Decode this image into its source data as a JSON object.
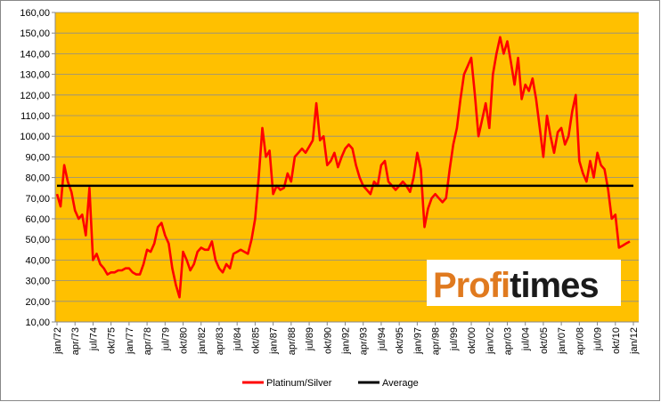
{
  "chart_data": {
    "type": "line",
    "categories": [
      "jan/72",
      null,
      null,
      null,
      null,
      "apr/73",
      null,
      null,
      null,
      null,
      "jul/74",
      null,
      null,
      null,
      null,
      "okt/75",
      null,
      null,
      null,
      null,
      "jan/77",
      null,
      null,
      null,
      null,
      "apr/78",
      null,
      null,
      null,
      null,
      "jul/79",
      null,
      null,
      null,
      null,
      "okt/80",
      null,
      null,
      null,
      null,
      "jan/82",
      null,
      null,
      null,
      null,
      "apr/83",
      null,
      null,
      null,
      null,
      "jul/84",
      null,
      null,
      null,
      null,
      "okt/85",
      null,
      null,
      null,
      null,
      "jan/87",
      null,
      null,
      null,
      null,
      "apr/88",
      null,
      null,
      null,
      null,
      "jul/89",
      null,
      null,
      null,
      null,
      "okt/90",
      null,
      null,
      null,
      null,
      "jan/92",
      null,
      null,
      null,
      null,
      "apr/93",
      null,
      null,
      null,
      null,
      "jul/94",
      null,
      null,
      null,
      null,
      "okt/95",
      null,
      null,
      null,
      null,
      "jan/97",
      null,
      null,
      null,
      null,
      "apr/98",
      null,
      null,
      null,
      null,
      "jul/99",
      null,
      null,
      null,
      null,
      "okt/00",
      null,
      null,
      null,
      null,
      "jan/02",
      null,
      null,
      null,
      null,
      "apr/03",
      null,
      null,
      null,
      null,
      "jul/04",
      null,
      null,
      null,
      null,
      "okt/05",
      null,
      null,
      null,
      null,
      "jan/07",
      null,
      null,
      null,
      null,
      "apr/08",
      null,
      null,
      null,
      null,
      "jul/09",
      null,
      null,
      null,
      null,
      "okt/10",
      null,
      null,
      null,
      null,
      "jan/12"
    ],
    "series": [
      {
        "name": "Platinum/Silver",
        "color": "#ff0000",
        "values": [
          72,
          66,
          86,
          78,
          73,
          64,
          60,
          62,
          52,
          75,
          40,
          43,
          38,
          36,
          33,
          34,
          34,
          35,
          35,
          36,
          36,
          34,
          33,
          33,
          38,
          45,
          44,
          48,
          56,
          58,
          52,
          48,
          36,
          28,
          22,
          44,
          40,
          35,
          38,
          44,
          46,
          45,
          45,
          49,
          40,
          36,
          34,
          38,
          36,
          43,
          44,
          45,
          44,
          43,
          50,
          60,
          80,
          104,
          90,
          93,
          72,
          76,
          74,
          75,
          82,
          78,
          90,
          92,
          94,
          92,
          95,
          98,
          116,
          98,
          100,
          86,
          88,
          92,
          85,
          90,
          94,
          96,
          94,
          86,
          80,
          76,
          74,
          72,
          78,
          76,
          86,
          88,
          78,
          76,
          74,
          76,
          78,
          76,
          73,
          80,
          92,
          84,
          56,
          65,
          70,
          72,
          70,
          68,
          70,
          84,
          96,
          104,
          118,
          130,
          134,
          138,
          120,
          100,
          108,
          116,
          104,
          130,
          140,
          148,
          140,
          146,
          136,
          125,
          138,
          118,
          125,
          122,
          128,
          118,
          104,
          90,
          110,
          100,
          92,
          102,
          104,
          96,
          100,
          112,
          120,
          88,
          82,
          78,
          88,
          80,
          92,
          86,
          84,
          74,
          60,
          62,
          46,
          47,
          48,
          49,
          null
        ]
      }
    ],
    "average": {
      "name": "Average",
      "color": "#000000",
      "value": 76
    },
    "ylim": [
      10,
      160
    ],
    "yticks": [
      {
        "value": 10,
        "label": "10,00"
      },
      {
        "value": 20,
        "label": "20,00"
      },
      {
        "value": 30,
        "label": "30,00"
      },
      {
        "value": 40,
        "label": "40,00"
      },
      {
        "value": 50,
        "label": "50,00"
      },
      {
        "value": 60,
        "label": "60,00"
      },
      {
        "value": 70,
        "label": "70,00"
      },
      {
        "value": 80,
        "label": "80,00"
      },
      {
        "value": 90,
        "label": "90,00"
      },
      {
        "value": 100,
        "label": "100,00"
      },
      {
        "value": 110,
        "label": "110,00"
      },
      {
        "value": 120,
        "label": "120,00"
      },
      {
        "value": 130,
        "label": "130,00"
      },
      {
        "value": 140,
        "label": "140,00"
      },
      {
        "value": 150,
        "label": "150,00"
      },
      {
        "value": 160,
        "label": "160,00"
      }
    ],
    "grid": true,
    "background": "#ffc000",
    "logo": [
      "Profi",
      "times"
    ]
  }
}
